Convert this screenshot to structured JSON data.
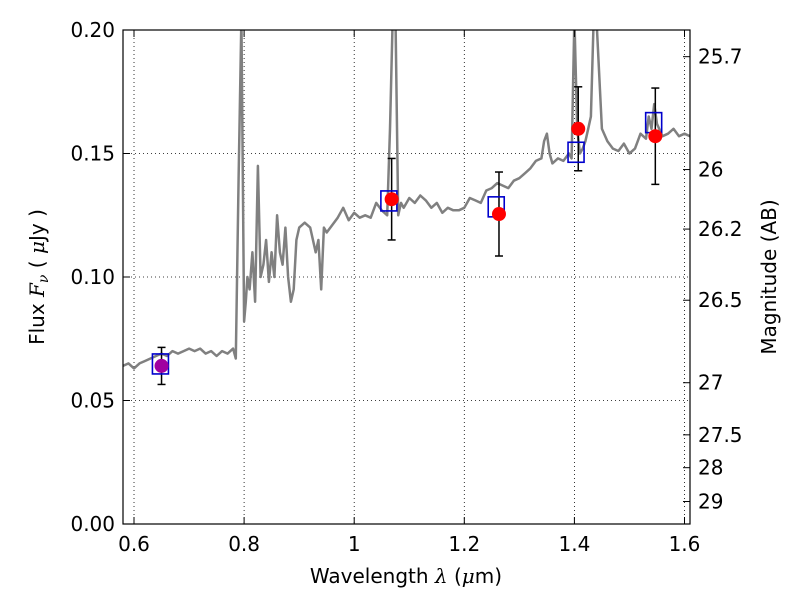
{
  "chart_data": {
    "type": "line",
    "xlabel": "Wavelength",
    "xlabel_math": "λ",
    "xlabel_unit_open": " (",
    "xlabel_unit_mu": "μ",
    "xlabel_unit_rest": "m)",
    "ylabel": "Flux",
    "ylabel_math": "F",
    "ylabel_math_sub": "ν",
    "ylabel_unit_open": " ( ",
    "ylabel_unit_mu": "μ",
    "ylabel_unit_rest": "Jy )",
    "y2label": "Magnitude (AB)",
    "xlim": [
      0.58,
      1.61
    ],
    "ylim": [
      0.0,
      0.2
    ],
    "grid": true,
    "x_ticks": [
      {
        "value": 0.6,
        "label": "0.6"
      },
      {
        "value": 0.8,
        "label": "0.8"
      },
      {
        "value": 1.0,
        "label": "1"
      },
      {
        "value": 1.2,
        "label": "1.2"
      },
      {
        "value": 1.4,
        "label": "1.4"
      },
      {
        "value": 1.6,
        "label": "1.6"
      }
    ],
    "y_ticks": [
      {
        "value": 0.0,
        "label": "0.00"
      },
      {
        "value": 0.05,
        "label": "0.05"
      },
      {
        "value": 0.1,
        "label": "0.10"
      },
      {
        "value": 0.15,
        "label": "0.15"
      },
      {
        "value": 0.2,
        "label": "0.20"
      }
    ],
    "y2_ticks": [
      {
        "label": "25.7",
        "flux": 0.1892
      },
      {
        "label": "26",
        "flux": 0.1435
      },
      {
        "label": "26.2",
        "flux": 0.1194
      },
      {
        "label": "26.5",
        "flux": 0.0906
      },
      {
        "label": "27",
        "flux": 0.0572
      },
      {
        "label": "27.5",
        "flux": 0.0361
      },
      {
        "label": "28",
        "flux": 0.0228
      },
      {
        "label": "29",
        "flux": 0.0091
      }
    ],
    "template_spectrum": {
      "color": "#808080",
      "x": [
        0.58,
        0.59,
        0.6,
        0.61,
        0.62,
        0.63,
        0.64,
        0.65,
        0.66,
        0.67,
        0.68,
        0.69,
        0.7,
        0.71,
        0.72,
        0.73,
        0.74,
        0.75,
        0.76,
        0.77,
        0.78,
        0.785,
        0.79,
        0.795,
        0.8,
        0.803,
        0.806,
        0.81,
        0.815,
        0.82,
        0.825,
        0.83,
        0.835,
        0.84,
        0.845,
        0.85,
        0.855,
        0.86,
        0.865,
        0.87,
        0.875,
        0.88,
        0.885,
        0.89,
        0.895,
        0.9,
        0.91,
        0.92,
        0.93,
        0.935,
        0.94,
        0.945,
        0.95,
        0.96,
        0.97,
        0.98,
        0.99,
        1.0,
        1.01,
        1.02,
        1.03,
        1.04,
        1.05,
        1.06,
        1.065,
        1.07,
        1.075,
        1.08,
        1.085,
        1.09,
        1.1,
        1.11,
        1.12,
        1.13,
        1.14,
        1.15,
        1.16,
        1.17,
        1.18,
        1.19,
        1.2,
        1.21,
        1.22,
        1.23,
        1.24,
        1.25,
        1.26,
        1.27,
        1.28,
        1.29,
        1.3,
        1.31,
        1.32,
        1.33,
        1.34,
        1.345,
        1.35,
        1.355,
        1.36,
        1.37,
        1.38,
        1.39,
        1.395,
        1.4,
        1.405,
        1.41,
        1.415,
        1.42,
        1.425,
        1.43,
        1.435,
        1.44,
        1.45,
        1.46,
        1.47,
        1.48,
        1.49,
        1.5,
        1.51,
        1.52,
        1.53,
        1.535,
        1.54,
        1.545,
        1.55,
        1.56,
        1.57,
        1.58,
        1.59,
        1.6,
        1.61
      ],
      "y": [
        0.064,
        0.065,
        0.063,
        0.065,
        0.066,
        0.067,
        0.068,
        0.069,
        0.068,
        0.07,
        0.069,
        0.07,
        0.071,
        0.07,
        0.071,
        0.069,
        0.07,
        0.068,
        0.07,
        0.069,
        0.071,
        0.067,
        0.14,
        0.205,
        0.082,
        0.09,
        0.1,
        0.095,
        0.11,
        0.09,
        0.145,
        0.1,
        0.105,
        0.115,
        0.098,
        0.11,
        0.1,
        0.125,
        0.11,
        0.105,
        0.12,
        0.1,
        0.09,
        0.095,
        0.115,
        0.12,
        0.122,
        0.12,
        0.11,
        0.115,
        0.095,
        0.12,
        0.118,
        0.121,
        0.124,
        0.128,
        0.123,
        0.126,
        0.124,
        0.125,
        0.124,
        0.13,
        0.127,
        0.125,
        0.16,
        0.205,
        0.205,
        0.125,
        0.13,
        0.128,
        0.132,
        0.13,
        0.133,
        0.131,
        0.128,
        0.13,
        0.126,
        0.128,
        0.127,
        0.127,
        0.128,
        0.132,
        0.131,
        0.13,
        0.135,
        0.136,
        0.138,
        0.137,
        0.136,
        0.139,
        0.14,
        0.142,
        0.144,
        0.147,
        0.148,
        0.155,
        0.158,
        0.15,
        0.146,
        0.148,
        0.147,
        0.15,
        0.148,
        0.205,
        0.16,
        0.15,
        0.152,
        0.155,
        0.16,
        0.165,
        0.205,
        0.205,
        0.16,
        0.155,
        0.152,
        0.151,
        0.154,
        0.15,
        0.152,
        0.158,
        0.156,
        0.165,
        0.16,
        0.17,
        0.162,
        0.157,
        0.158,
        0.16,
        0.157,
        0.158,
        0.157
      ],
      "top_overshoot_points": []
    },
    "model_points": {
      "marker": "square",
      "color": "#0000cc",
      "x": [
        0.648,
        1.063,
        1.258,
        1.403,
        1.544
      ],
      "y": [
        0.0648,
        0.1308,
        0.1284,
        0.1505,
        0.1625
      ]
    },
    "observed_points": {
      "marker": "circle",
      "color": "#ff0000",
      "x": [
        0.65,
        1.068,
        1.263,
        1.407,
        1.547
      ],
      "y": [
        0.064,
        0.1315,
        0.1255,
        0.16,
        0.157
      ],
      "yerr_low": [
        0.0075,
        0.0165,
        0.017,
        0.017,
        0.0195
      ],
      "yerr_high": [
        0.0075,
        0.0165,
        0.017,
        0.017,
        0.0195
      ]
    }
  }
}
